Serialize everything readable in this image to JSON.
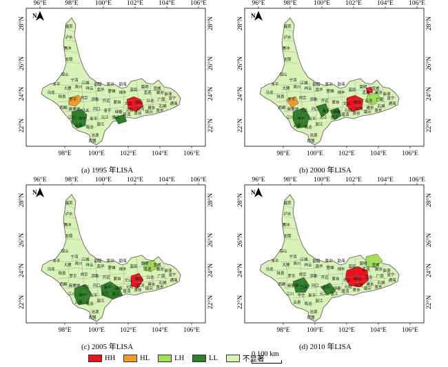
{
  "panels": [
    {
      "id": "a",
      "caption": "(a) 1995 年LISA"
    },
    {
      "id": "b",
      "caption": "(b) 2000 年LISA"
    },
    {
      "id": "c",
      "caption": "(c) 2005 年LISA"
    },
    {
      "id": "d",
      "caption": "(d) 2010 年LISA"
    }
  ],
  "axes": {
    "lon_ticks": [
      "96°E",
      "98°E",
      "100°E",
      "102°E",
      "104°E",
      "106°E"
    ],
    "lon_ticks_bottom": [
      "98°E",
      "100°E",
      "102°E",
      "104°E",
      "106°E"
    ],
    "lat_ticks": [
      "28°N",
      "26°N",
      "24°N",
      "22°N"
    ]
  },
  "north_arrow": "N",
  "legend": {
    "items": [
      {
        "label": "HH",
        "color": "#e8141c"
      },
      {
        "label": "HL",
        "color": "#f39c2e"
      },
      {
        "label": "LH",
        "color": "#a2e05a"
      },
      {
        "label": "LL",
        "color": "#2f7f2a"
      },
      {
        "label": "不显著",
        "color": "#d9f2b8"
      }
    ]
  },
  "scale_bar": {
    "label": "0 100 km"
  },
  "colors": {
    "not_significant": "#d9f2b8",
    "boundary": "#555555"
  }
}
